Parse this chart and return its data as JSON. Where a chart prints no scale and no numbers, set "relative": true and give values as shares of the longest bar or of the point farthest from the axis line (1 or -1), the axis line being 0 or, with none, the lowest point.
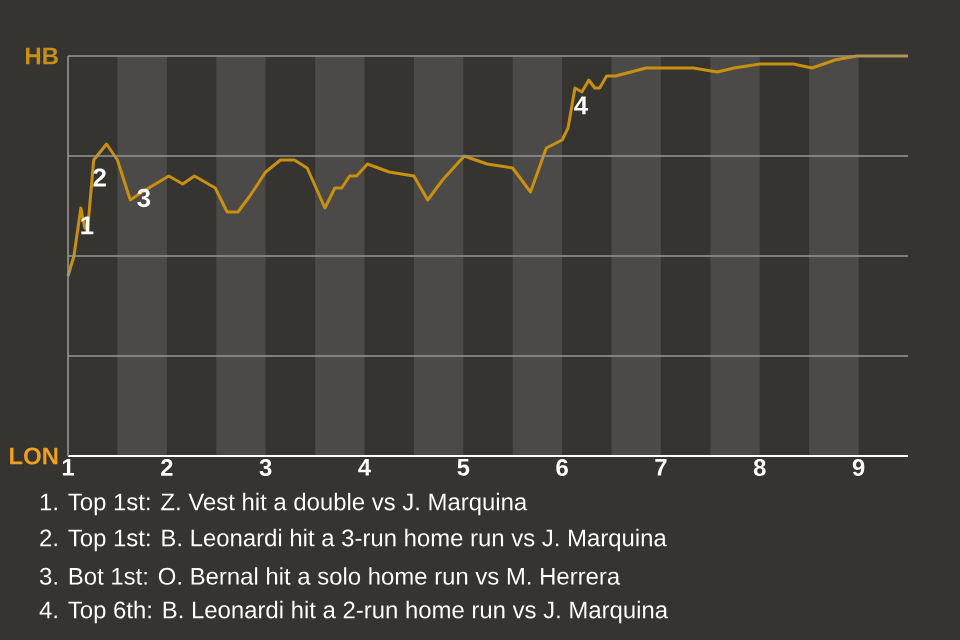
{
  "chart_data": {
    "type": "line",
    "relative": true,
    "series": [
      {
        "color": "#c8900f",
        "x": [
          1.0,
          1.06,
          1.13,
          1.17,
          1.2,
          1.26,
          1.39,
          1.5,
          1.63,
          1.75,
          2.02,
          2.16,
          2.28,
          2.49,
          2.61,
          2.72,
          2.84,
          3.0,
          3.15,
          3.29,
          3.42,
          3.6,
          3.7,
          3.77,
          3.85,
          3.92,
          4.03,
          4.25,
          4.5,
          4.64,
          4.79,
          5.01,
          5.24,
          5.5,
          5.68,
          5.84,
          6.0,
          6.06,
          6.13,
          6.2,
          6.27,
          6.33,
          6.38,
          6.45,
          6.54,
          6.85,
          7.33,
          7.57,
          7.74,
          8.0,
          8.34,
          8.53,
          8.76,
          8.98,
          9.5
        ],
        "values": [
          0.45,
          0.5,
          0.62,
          0.57,
          0.57,
          0.74,
          0.78,
          0.74,
          0.64,
          0.66,
          0.7,
          0.68,
          0.7,
          0.67,
          0.61,
          0.61,
          0.65,
          0.71,
          0.74,
          0.74,
          0.72,
          0.62,
          0.67,
          0.67,
          0.7,
          0.7,
          0.73,
          0.71,
          0.7,
          0.64,
          0.69,
          0.75,
          0.73,
          0.72,
          0.66,
          0.77,
          0.79,
          0.82,
          0.92,
          0.91,
          0.94,
          0.92,
          0.92,
          0.95,
          0.95,
          0.97,
          0.97,
          0.96,
          0.97,
          0.98,
          0.98,
          0.97,
          0.99,
          1,
          1
        ]
      }
    ],
    "xlim": [
      1,
      9.5
    ],
    "xticks": [
      1,
      2,
      3,
      4,
      5,
      6,
      7,
      8,
      9
    ],
    "grid": "y",
    "bands": [
      {
        "axis": "x",
        "from": 1.5,
        "to": 2,
        "color": "#4b4a48"
      },
      {
        "axis": "x",
        "from": 2.5,
        "to": 3,
        "color": "#4b4a48"
      },
      {
        "axis": "x",
        "from": 3.5,
        "to": 4,
        "color": "#4b4a48"
      },
      {
        "axis": "x",
        "from": 4.5,
        "to": 5,
        "color": "#4b4a48"
      },
      {
        "axis": "x",
        "from": 5.5,
        "to": 6,
        "color": "#4b4a48"
      },
      {
        "axis": "x",
        "from": 6.5,
        "to": 7,
        "color": "#4b4a48"
      },
      {
        "axis": "x",
        "from": 7.5,
        "to": 8,
        "color": "#4b4a48"
      },
      {
        "axis": "x",
        "from": 8.5,
        "to": 9,
        "color": "#4b4a48"
      }
    ],
    "annotations": [
      "HB",
      "LON",
      {
        "text": "1",
        "x": 1.13,
        "y": 0.62
      },
      {
        "text": "2",
        "x": 1.26,
        "y": 0.74
      },
      {
        "text": "3",
        "x": 1.63,
        "y": 0.64
      },
      {
        "text": "4",
        "x": 6.13,
        "y": 0.92
      },
      "1. Top 1st: Z. Vest hit a double vs J. Marquina",
      "2. Top 1st: B. Leonardi hit a 3-run home run vs J. Marquina",
      "3. Bot 1st: O. Bernal hit a solo home run vs M. Herrera",
      "4. Top 6th: B. Leonardi hit a 2-run home run vs J. Marquina"
    ]
  }
}
